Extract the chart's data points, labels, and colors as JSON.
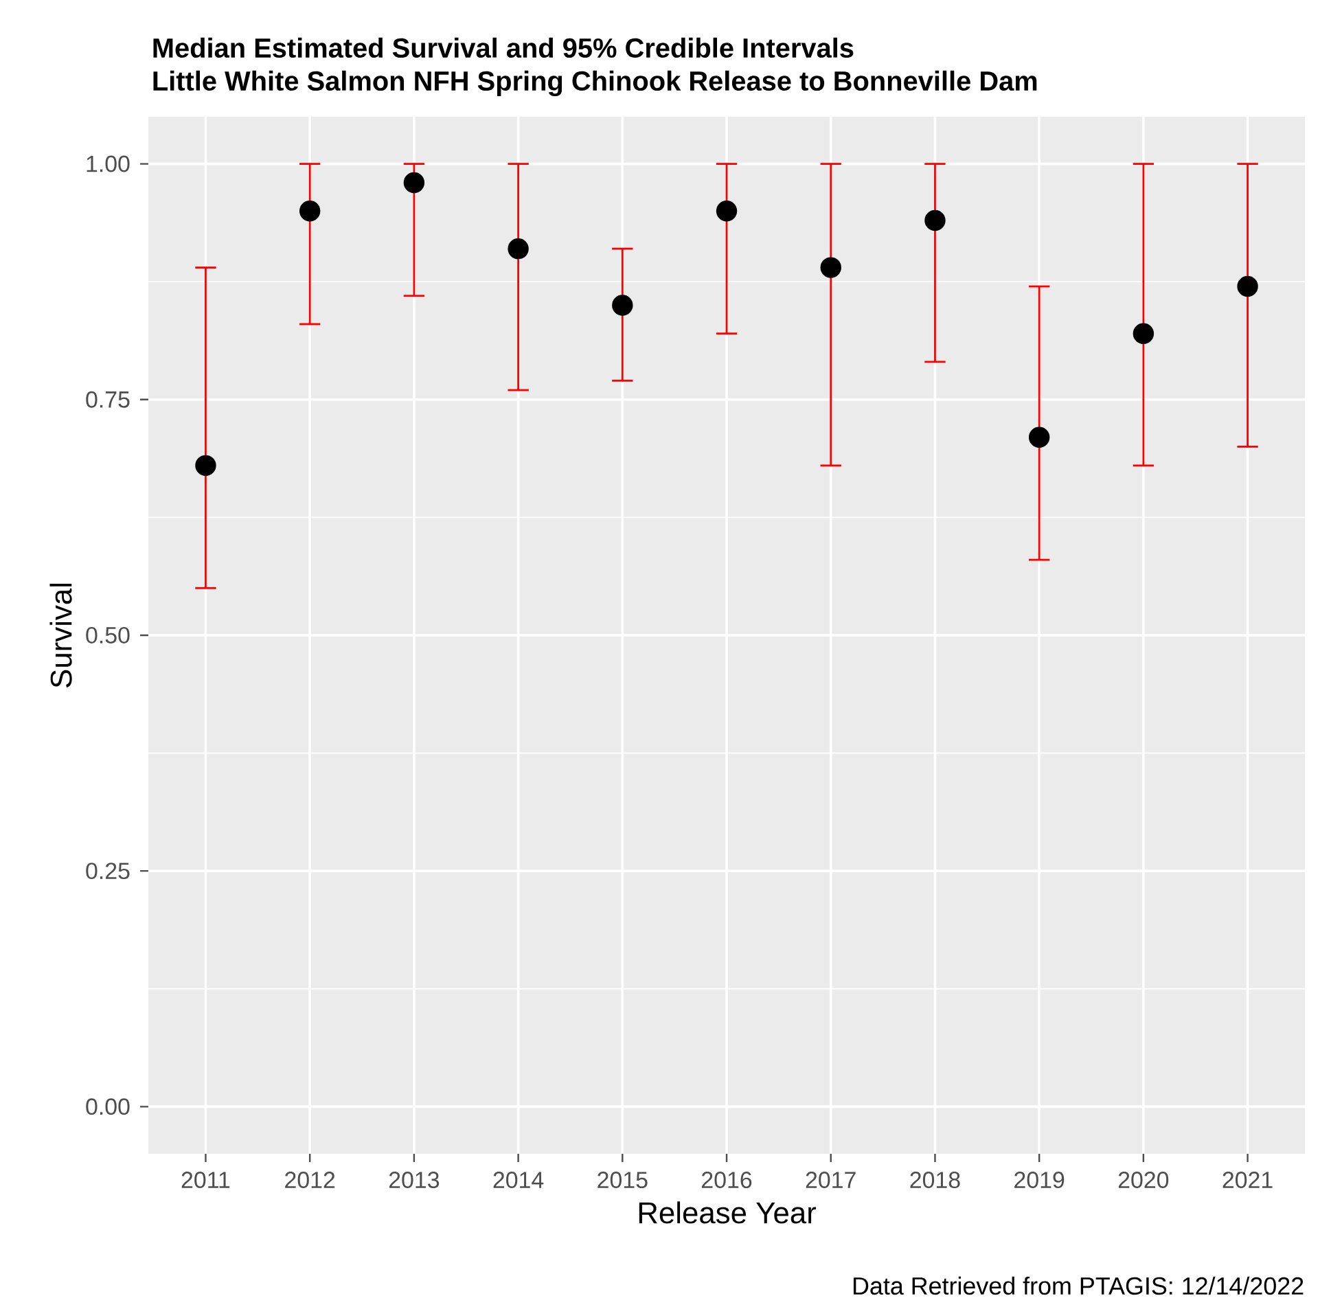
{
  "chart_data": {
    "type": "scatter",
    "title": "Median Estimated Survival and 95% Credible Intervals",
    "subtitle": "Little White Salmon NFH Spring Chinook Release to Bonneville Dam",
    "xlabel": "Release Year",
    "ylabel": "Survival",
    "categories": [
      "2011",
      "2012",
      "2013",
      "2014",
      "2015",
      "2016",
      "2017",
      "2018",
      "2019",
      "2020",
      "2021"
    ],
    "values": [
      0.68,
      0.95,
      0.98,
      0.91,
      0.85,
      0.95,
      0.89,
      0.94,
      0.71,
      0.82,
      0.87
    ],
    "errors": [
      [
        0.55,
        0.89
      ],
      [
        0.83,
        1.0
      ],
      [
        0.86,
        1.0
      ],
      [
        0.76,
        1.0
      ],
      [
        0.77,
        0.91
      ],
      [
        0.82,
        1.0
      ],
      [
        0.68,
        1.0
      ],
      [
        0.79,
        1.0
      ],
      [
        0.58,
        0.87
      ],
      [
        0.68,
        1.0
      ],
      [
        0.7,
        1.0
      ]
    ],
    "color": "#000000",
    "marker": "circle",
    "grid": true,
    "ylim": [
      -0.05,
      1.05
    ],
    "yticks": [
      {
        "value": 0,
        "label": "0.00"
      },
      {
        "value": 0.25,
        "label": "0.25"
      },
      {
        "value": 0.5,
        "label": "0.50"
      },
      {
        "value": 0.75,
        "label": "0.75"
      },
      {
        "value": 1,
        "label": "1.00"
      }
    ],
    "annotations": [
      "Data Retrieved from PTAGIS: 12/14/2022"
    ]
  }
}
